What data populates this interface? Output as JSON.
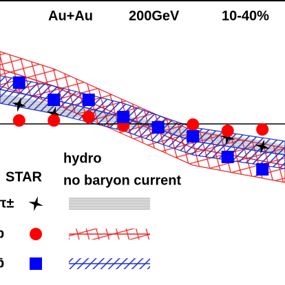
{
  "chart_data": {
    "type": "scatter",
    "title_parts": [
      "Au+Au",
      "200GeV",
      "10-40%"
    ],
    "legend_title": "STAR",
    "model_title": [
      "hydro",
      "no baryon current"
    ],
    "x": [
      1,
      2,
      3,
      4,
      5,
      6,
      7,
      8
    ],
    "xlim": [
      0.45,
      8.65
    ],
    "ylim": [
      -4.68,
      3.6
    ],
    "series": [
      {
        "name": "π±",
        "color": "#000000",
        "marker": "star",
        "values": [
          0.56,
          0.3,
          0.2,
          0.08,
          -0.1,
          -0.3,
          -0.4,
          -0.66
        ],
        "hydro": {
          "color": "#bbbbbb",
          "style": "solid",
          "x": [
            0.45,
            2,
            4,
            6,
            8.65
          ],
          "values": [
            0.74,
            0.44,
            0.1,
            -0.3,
            -0.76
          ],
          "errors": [
            0.15,
            0.15,
            0.15,
            0.15,
            0.15
          ]
        }
      },
      {
        "name": "p",
        "color": "#ff0000",
        "marker": "circle",
        "values": [
          0.1,
          0.1,
          0.2,
          -0.04,
          -0.08,
          -0.02,
          -0.2,
          -0.16
        ],
        "hydro": {
          "color": "#ee2222",
          "style": "cross",
          "x": [
            0.45,
            2,
            4,
            6,
            8.65
          ],
          "values": [
            1.6,
            1.1,
            0.2,
            -0.7,
            -1.2
          ],
          "errors": [
            0.5,
            0.5,
            0.5,
            0.5,
            0.5
          ]
        }
      },
      {
        "name": "p̄",
        "color": "#0000ff",
        "marker": "square",
        "values": [
          1.2,
          0.7,
          0.7,
          0.2,
          -0.1,
          -0.36,
          -0.96,
          -1.32
        ],
        "hydro": {
          "color": "#2233cc",
          "style": "diag",
          "x": [
            0.45,
            2,
            4,
            6,
            8.65
          ],
          "values": [
            1.0,
            0.7,
            0.2,
            -0.5,
            -0.9
          ],
          "errors": [
            0.4,
            0.4,
            0.4,
            0.4,
            0.4
          ]
        }
      }
    ]
  }
}
